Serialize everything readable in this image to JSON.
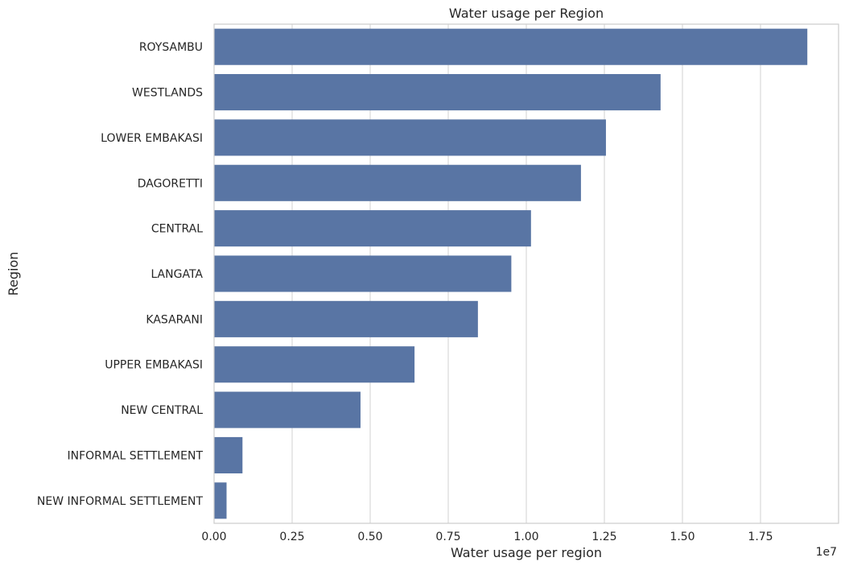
{
  "chart_data": {
    "type": "bar",
    "orientation": "horizontal",
    "title": "Water usage per Region",
    "xlabel": "Water usage per region",
    "ylabel": "Region",
    "x_scale_label": "1e7",
    "xlim": [
      0,
      2.0
    ],
    "x_ticks": [
      0.0,
      0.25,
      0.5,
      0.75,
      1.0,
      1.25,
      1.5,
      1.75
    ],
    "x_tick_labels": [
      "0.00",
      "0.25",
      "0.50",
      "0.75",
      "1.00",
      "1.25",
      "1.50",
      "1.75"
    ],
    "grid": "vertical",
    "bar_color": "#5975a4",
    "categories": [
      "ROYSAMBU",
      "WESTLANDS",
      "LOWER EMBAKASI",
      "DAGORETTI",
      "CENTRAL",
      "LANGATA",
      "KASARANI",
      "UPPER EMBAKASI",
      "NEW CENTRAL",
      "INFORMAL SETTLEMENT",
      "NEW INFORMAL SETTLEMENT"
    ],
    "values": [
      19000000,
      14300000,
      12550000,
      11750000,
      10150000,
      9520000,
      8450000,
      6420000,
      4690000,
      910000,
      400000
    ]
  }
}
